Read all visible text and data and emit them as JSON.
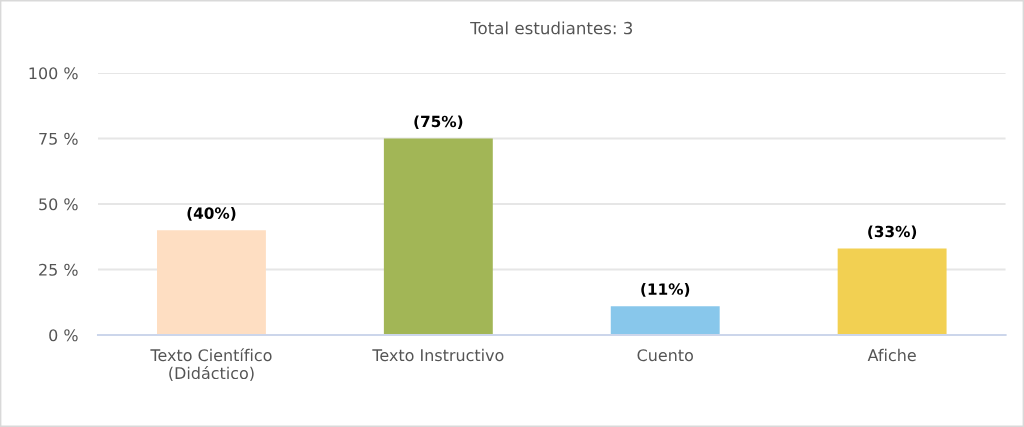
{
  "chart_data": {
    "type": "bar",
    "title": "Total estudiantes: 3",
    "categories": [
      "Texto Científico\n(Didáctico)",
      "Texto Instructivo",
      "Cuento",
      "Afiche"
    ],
    "values": [
      40,
      75,
      11,
      33
    ],
    "colors": [
      "#fedec2",
      "#a2b656",
      "#88c7eb",
      "#f2d052"
    ],
    "value_labels": [
      "(40%)",
      "(75%)",
      "(11%)",
      "(33%)"
    ],
    "ylim": [
      0,
      100
    ],
    "yticks": [
      {
        "value": 0,
        "label": "0 %"
      },
      {
        "value": 25,
        "label": "25 %"
      },
      {
        "value": 50,
        "label": "50 %"
      },
      {
        "value": 75,
        "label": "75 %"
      },
      {
        "value": 100,
        "label": "100 %"
      }
    ],
    "grid": "y"
  }
}
